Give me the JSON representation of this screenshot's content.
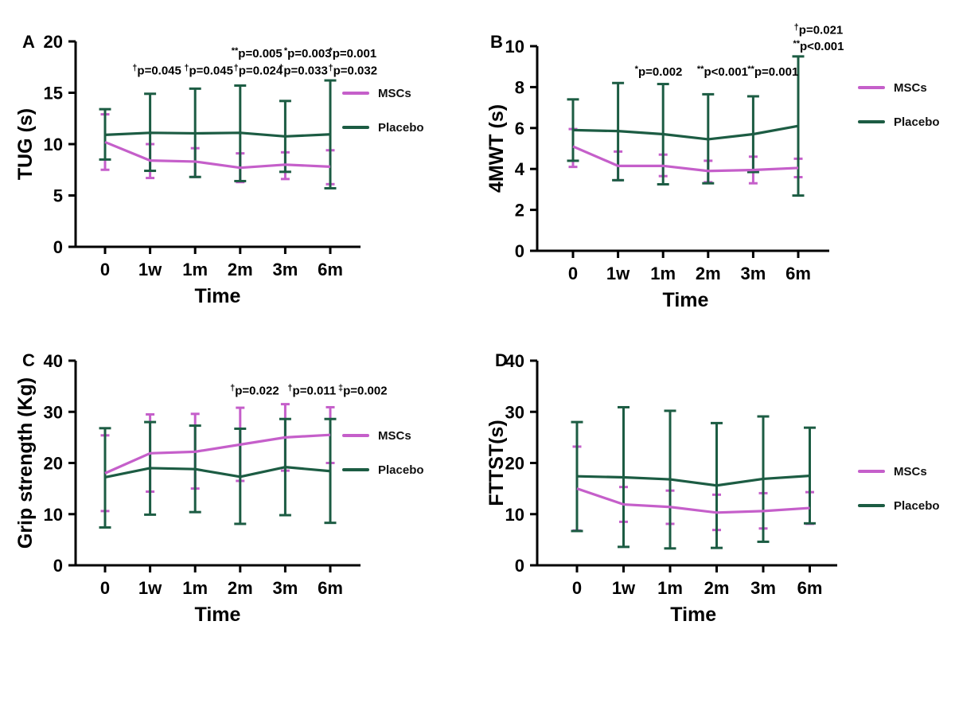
{
  "colors": {
    "mscs": "#c55fca",
    "placebo": "#1c5c43",
    "axis": "#000000",
    "text": "#000000",
    "background": "#ffffff"
  },
  "legend": {
    "mscs": "MSCs",
    "placebo": "Placebo"
  },
  "chart_data": [
    {
      "id": "A",
      "type": "line",
      "title": "",
      "ylabel": "TUG (s)",
      "xlabel": "Time",
      "categories": [
        "0",
        "1w",
        "1m",
        "2m",
        "3m",
        "6m"
      ],
      "ylim": [
        0,
        20
      ],
      "yticks": [
        0,
        5,
        10,
        15,
        20
      ],
      "grid": false,
      "legend_position": "right",
      "series": [
        {
          "name": "MSCs",
          "color_key": "mscs",
          "values": [
            10.2,
            8.4,
            8.3,
            7.7,
            8.0,
            7.8
          ],
          "err_lo": [
            7.5,
            6.7,
            6.8,
            6.3,
            6.6,
            6.1
          ],
          "err_hi": [
            12.9,
            10.0,
            9.6,
            9.1,
            9.2,
            9.4
          ]
        },
        {
          "name": "Placebo",
          "color_key": "placebo",
          "values": [
            10.9,
            11.1,
            11.05,
            11.1,
            10.75,
            10.95
          ],
          "err_lo": [
            8.5,
            7.4,
            6.8,
            6.4,
            7.3,
            5.7
          ],
          "err_hi": [
            13.4,
            14.9,
            15.4,
            15.7,
            14.2,
            16.2
          ]
        }
      ],
      "annotations": [
        {
          "sup": "**",
          "body": "p=0.005",
          "x": 3.37,
          "y": 18.45
        },
        {
          "sup": "*",
          "body": "p=0.003",
          "x": 4.5,
          "y": 18.45
        },
        {
          "sup": "*",
          "body": "p=0.001",
          "x": 5.5,
          "y": 18.45
        },
        {
          "sup": "†",
          "body": "p=0.045",
          "x": 1.15,
          "y": 16.8
        },
        {
          "sup": "†",
          "body": "p=0.045",
          "x": 2.3,
          "y": 16.8
        },
        {
          "sup": "†",
          "body": "p=0.024",
          "x": 3.4,
          "y": 16.8
        },
        {
          "sup": "†",
          "body": "p=0.033",
          "x": 4.4,
          "y": 16.8
        },
        {
          "sup": "†",
          "body": "p=0.032",
          "x": 5.5,
          "y": 16.8
        }
      ]
    },
    {
      "id": "B",
      "type": "line",
      "title": "",
      "ylabel": "4MWT (s)",
      "xlabel": "Time",
      "categories": [
        "0",
        "1w",
        "1m",
        "2m",
        "3m",
        "6m"
      ],
      "ylim": [
        0,
        10
      ],
      "yticks": [
        0,
        2,
        4,
        6,
        8,
        10
      ],
      "grid": false,
      "legend_position": "right",
      "series": [
        {
          "name": "MSCs",
          "color_key": "mscs",
          "values": [
            5.1,
            4.15,
            4.15,
            3.9,
            3.95,
            4.05
          ],
          "err_lo": [
            4.1,
            3.45,
            3.65,
            3.35,
            3.3,
            3.6
          ],
          "err_hi": [
            5.95,
            4.85,
            4.7,
            4.4,
            4.6,
            4.5
          ]
        },
        {
          "name": "Placebo",
          "color_key": "placebo",
          "values": [
            5.9,
            5.85,
            5.7,
            5.45,
            5.7,
            6.1
          ],
          "err_lo": [
            4.4,
            3.45,
            3.25,
            3.3,
            3.85,
            2.7
          ],
          "err_hi": [
            7.4,
            8.2,
            8.15,
            7.65,
            7.55,
            9.5
          ]
        }
      ],
      "annotations": [
        {
          "sup": "*",
          "body": "p=0.002",
          "x": 1.9,
          "y": 8.56
        },
        {
          "sup": "**",
          "body": "p<0.001",
          "x": 3.32,
          "y": 8.56
        },
        {
          "sup": "**",
          "body": "p=0.001",
          "x": 4.44,
          "y": 8.56
        },
        {
          "sup": "†",
          "body": "p=0.021",
          "x": 5.45,
          "y": 10.6
        },
        {
          "sup": "**",
          "body": "p<0.001",
          "x": 5.45,
          "y": 9.8
        }
      ]
    },
    {
      "id": "C",
      "type": "line",
      "title": "",
      "ylabel": "Grip strength (Kg)",
      "xlabel": "Time",
      "categories": [
        "0",
        "1w",
        "1m",
        "2m",
        "3m",
        "6m"
      ],
      "ylim": [
        0,
        40
      ],
      "yticks": [
        0,
        10,
        20,
        30,
        40
      ],
      "grid": false,
      "legend_position": "right",
      "series": [
        {
          "name": "MSCs",
          "color_key": "mscs",
          "values": [
            18.0,
            21.9,
            22.2,
            23.6,
            25.0,
            25.5
          ],
          "err_lo": [
            10.6,
            14.4,
            15.0,
            16.5,
            18.5,
            20.0
          ],
          "err_hi": [
            25.4,
            29.5,
            29.6,
            30.8,
            31.5,
            30.9
          ]
        },
        {
          "name": "Placebo",
          "color_key": "placebo",
          "values": [
            17.2,
            19.0,
            18.8,
            17.3,
            19.2,
            18.4
          ],
          "err_lo": [
            7.4,
            9.9,
            10.4,
            8.1,
            9.8,
            8.3
          ],
          "err_hi": [
            26.8,
            28.0,
            27.3,
            26.7,
            28.6,
            28.6
          ]
        }
      ],
      "annotations": [
        {
          "sup": "†",
          "body": "p=0.022",
          "x": 3.32,
          "y": 33.4
        },
        {
          "sup": "†",
          "body": "p=0.011",
          "x": 4.59,
          "y": 33.4
        },
        {
          "sup": "‡",
          "body": "p=0.002",
          "x": 5.72,
          "y": 33.4
        }
      ]
    },
    {
      "id": "D",
      "type": "line",
      "title": "",
      "ylabel": "FTTST(s)",
      "xlabel": "Time",
      "categories": [
        "0",
        "1w",
        "1m",
        "2m",
        "3m",
        "6m"
      ],
      "ylim": [
        0,
        40
      ],
      "yticks": [
        0,
        10,
        20,
        30,
        40
      ],
      "grid": false,
      "legend_position": "right",
      "series": [
        {
          "name": "MSCs",
          "color_key": "mscs",
          "values": [
            15.0,
            11.9,
            11.4,
            10.3,
            10.6,
            11.2
          ],
          "err_lo": [
            6.8,
            8.5,
            8.1,
            6.9,
            7.2,
            8.1
          ],
          "err_hi": [
            23.2,
            15.3,
            14.6,
            13.8,
            14.1,
            14.3
          ]
        },
        {
          "name": "Placebo",
          "color_key": "placebo",
          "values": [
            17.4,
            17.2,
            16.8,
            15.6,
            16.9,
            17.5
          ],
          "err_lo": [
            6.7,
            3.6,
            3.3,
            3.4,
            4.6,
            8.2
          ],
          "err_hi": [
            28.0,
            30.9,
            30.2,
            27.8,
            29.1,
            26.9
          ]
        }
      ],
      "annotations": []
    }
  ]
}
